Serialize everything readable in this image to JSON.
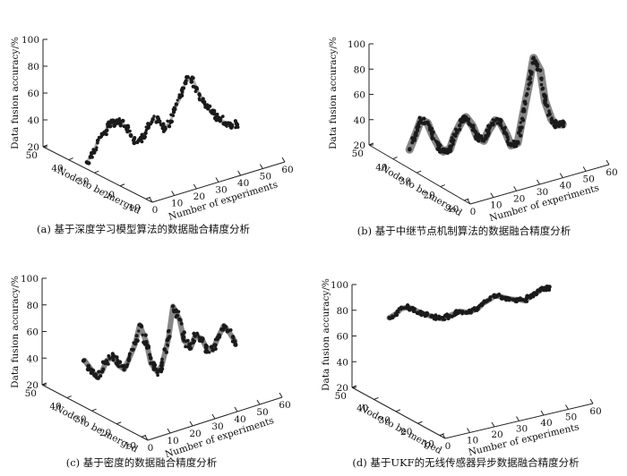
{
  "chart_data": [
    {
      "type": "scatter",
      "caption": "(a) 基于深度学习模型算法的数据融合精度分析",
      "zlabel": "Data fusion accuracy/%",
      "xlabel": "Number of experiments",
      "ylabel": "Node to be merged",
      "zlim": [
        20,
        100
      ],
      "z_ticks": [
        "100",
        "80",
        "60",
        "40",
        "20"
      ],
      "x_ticks": [
        "0",
        "10",
        "20",
        "30",
        "40",
        "50",
        "60"
      ],
      "y_ticks": [
        "50",
        "40",
        "30",
        "20",
        "10"
      ],
      "series": [
        {
          "x": [
            0,
            2,
            4,
            6,
            8,
            10,
            12,
            14,
            16,
            18,
            20,
            22,
            24,
            26,
            28,
            30,
            32,
            34,
            36,
            38,
            40,
            42,
            44,
            46,
            48,
            50,
            52,
            54
          ],
          "y": [
            30,
            29,
            29,
            28,
            28,
            27,
            27,
            26,
            26,
            25,
            25,
            24,
            24,
            23,
            23,
            22,
            22,
            21,
            21,
            20,
            20,
            19,
            19,
            18,
            18,
            17,
            17,
            16
          ],
          "z": [
            25,
            32,
            40,
            46,
            50,
            52,
            52,
            48,
            40,
            35,
            37,
            45,
            50,
            48,
            42,
            47,
            55,
            65,
            75,
            77,
            68,
            58,
            52,
            48,
            44,
            40,
            38,
            38
          ]
        }
      ]
    },
    {
      "type": "scatter",
      "caption": "(b) 基于中继节点机制算法的数据融合精度分析",
      "zlabel": "Data fusion accuracy/%",
      "xlabel": "Number of experiments",
      "ylabel": "Node to be merged",
      "zlim": [
        20,
        100
      ],
      "z_ticks": [
        "100",
        "80",
        "60",
        "40",
        "20"
      ],
      "x_ticks": [
        "0",
        "10",
        "20",
        "30",
        "40",
        "50",
        "60"
      ],
      "y_ticks": [
        "50",
        "40",
        "30",
        "20",
        "10"
      ],
      "series": [
        {
          "x": [
            0,
            2,
            4,
            6,
            8,
            10,
            12,
            14,
            16,
            18,
            20,
            22,
            24,
            26,
            28,
            30,
            32,
            34,
            36,
            38,
            40,
            42,
            44,
            46,
            48,
            50,
            52,
            54
          ],
          "y": [
            30,
            29,
            29,
            28,
            28,
            27,
            27,
            26,
            26,
            25,
            25,
            24,
            24,
            23,
            23,
            22,
            22,
            21,
            21,
            20,
            20,
            19,
            19,
            18,
            18,
            17,
            17,
            16
          ],
          "z": [
            35,
            48,
            57,
            55,
            45,
            35,
            30,
            32,
            42,
            52,
            55,
            48,
            38,
            35,
            42,
            50,
            48,
            38,
            28,
            30,
            48,
            75,
            95,
            85,
            60,
            45,
            40,
            40
          ]
        }
      ]
    },
    {
      "type": "scatter",
      "caption": "(c) 基于密度的数据融合精度分析",
      "zlabel": "Data fusion accuracy/%",
      "xlabel": "Number of experiments",
      "ylabel": "Node to be merged",
      "zlim": [
        20,
        100
      ],
      "z_ticks": [
        "100",
        "80",
        "60",
        "40",
        "20"
      ],
      "x_ticks": [
        "0",
        "10",
        "20",
        "30",
        "40",
        "50",
        "60"
      ],
      "y_ticks": [
        "50",
        "40",
        "30",
        "20",
        "10"
      ],
      "series": [
        {
          "x": [
            0,
            2,
            4,
            6,
            8,
            10,
            12,
            14,
            16,
            18,
            20,
            22,
            24,
            26,
            28,
            30,
            32,
            34,
            36,
            38,
            40,
            42,
            44,
            46,
            48,
            50,
            52,
            54
          ],
          "y": [
            30,
            29,
            29,
            28,
            28,
            27,
            27,
            26,
            26,
            25,
            25,
            24,
            24,
            23,
            23,
            22,
            22,
            21,
            21,
            20,
            20,
            19,
            19,
            18,
            18,
            17,
            17,
            16
          ],
          "z": [
            55,
            48,
            42,
            45,
            52,
            55,
            48,
            44,
            50,
            62,
            75,
            62,
            45,
            38,
            42,
            62,
            85,
            75,
            58,
            52,
            60,
            58,
            50,
            48,
            55,
            65,
            60,
            52
          ]
        }
      ]
    },
    {
      "type": "scatter",
      "caption": "(d) 基于UKF的无线传感器异步数据融合精度分析",
      "zlabel": "Data fusion accuracy/%",
      "xlabel": "Number of experiments",
      "ylabel": "Node to be merged",
      "zlim": [
        20,
        100
      ],
      "z_ticks": [
        "100",
        "80",
        "60",
        "40",
        "20"
      ],
      "x_ticks": [
        "0",
        "10",
        "20",
        "30",
        "40",
        "50",
        "60"
      ],
      "y_ticks": [
        "50",
        "40",
        "30",
        "20",
        "10"
      ],
      "series": [
        {
          "x": [
            0,
            2,
            4,
            6,
            8,
            10,
            12,
            14,
            16,
            18,
            20,
            22,
            24,
            26,
            28,
            30,
            32,
            34,
            36,
            38,
            40,
            42,
            44,
            46,
            48,
            50,
            52,
            54
          ],
          "y": [
            30,
            29,
            29,
            28,
            28,
            27,
            27,
            26,
            26,
            25,
            25,
            24,
            24,
            23,
            23,
            22,
            22,
            21,
            21,
            20,
            20,
            19,
            19,
            18,
            18,
            17,
            17,
            16
          ],
          "z": [
            90,
            93,
            96,
            97,
            95,
            92,
            90,
            88,
            86,
            85,
            86,
            88,
            89,
            88,
            88,
            90,
            93,
            96,
            98,
            97,
            95,
            94,
            93,
            92,
            94,
            97,
            99,
            100
          ]
        }
      ]
    }
  ],
  "colors": {
    "dark_dots": "#1a1a1a",
    "grey_band": "#7a7a7a",
    "axis": "#222222"
  }
}
